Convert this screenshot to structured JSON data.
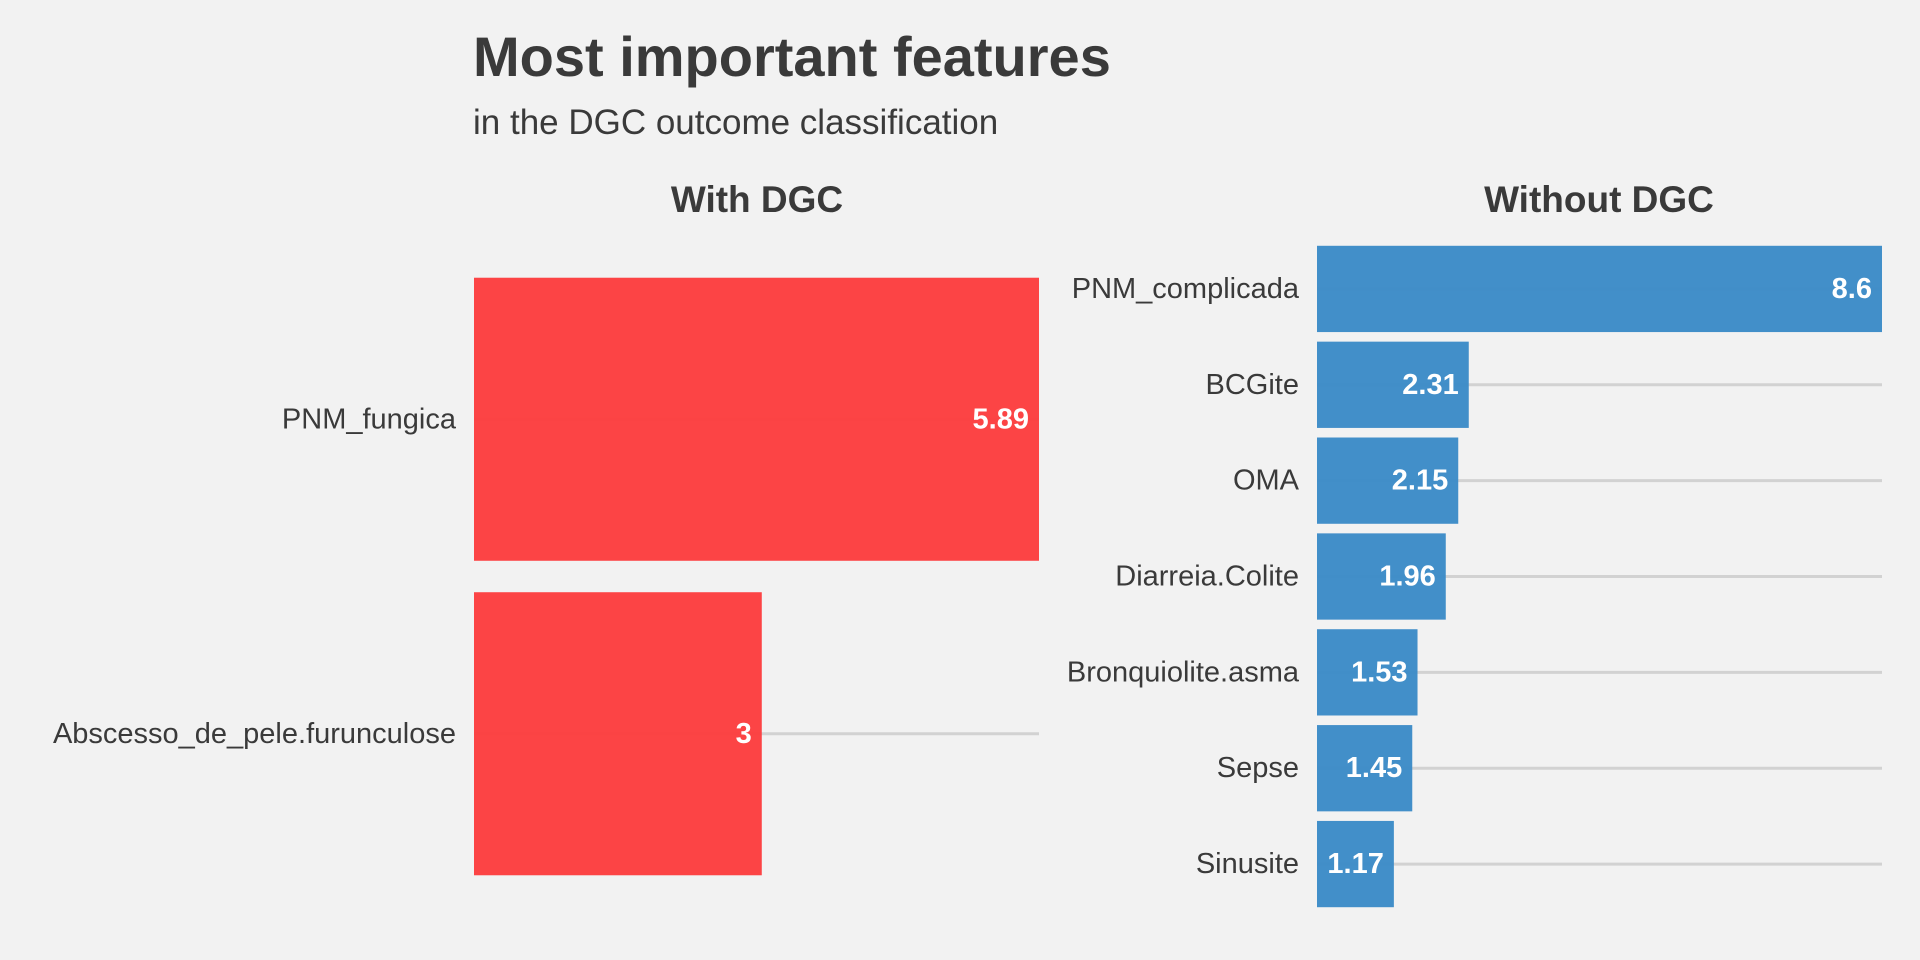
{
  "chart_data": [
    {
      "type": "bar",
      "orientation": "horizontal",
      "title": "Most important features",
      "subtitle": "in the DGC outcome classification",
      "panel_title": "With DGC",
      "color": "#fc3e3f",
      "categories": [
        "PNM_fungica",
        "Abscesso_de_pele.furunculose"
      ],
      "values": [
        5.89,
        3
      ],
      "value_labels": [
        "5.89",
        "3"
      ],
      "xlim": [
        0,
        5.89
      ],
      "grid": true
    },
    {
      "type": "bar",
      "orientation": "horizontal",
      "panel_title": "Without DGC",
      "color": "#3c8bc7",
      "categories": [
        "PNM_complicada",
        "BCGite",
        "OMA",
        "Diarreia.Colite",
        "Bronquiolite.asma",
        "Sepse",
        "Sinusite"
      ],
      "values": [
        8.6,
        2.31,
        2.15,
        1.96,
        1.53,
        1.45,
        1.17
      ],
      "value_labels": [
        "8.6",
        "2.31",
        "2.15",
        "1.96",
        "1.53",
        "1.45",
        "1.17"
      ],
      "xlim": [
        0,
        8.6
      ],
      "grid": true
    }
  ]
}
